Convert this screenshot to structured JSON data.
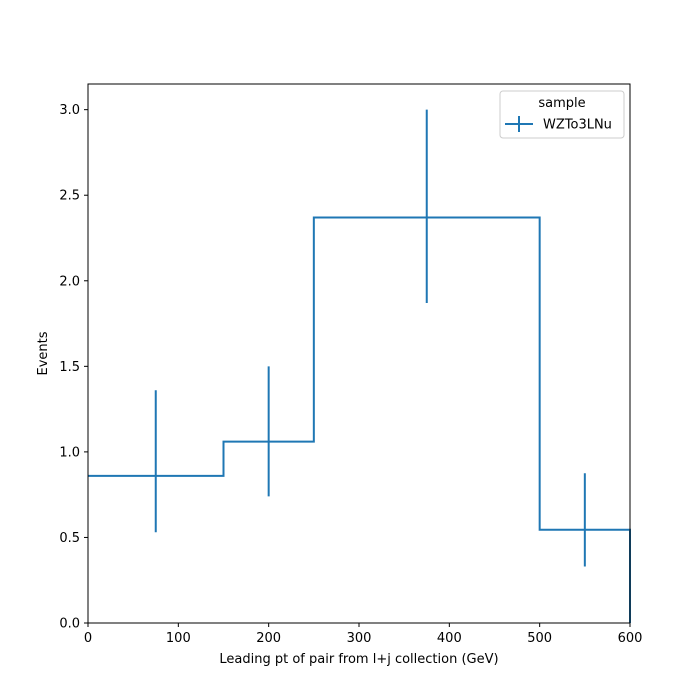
{
  "chart_data": {
    "type": "step",
    "xlabel": "Leading pt of pair from l+j collection (GeV)",
    "ylabel": "Events",
    "xlim": [
      0,
      600
    ],
    "ylim": [
      0,
      3.15
    ],
    "xticks": [
      0,
      100,
      200,
      300,
      400,
      500,
      600
    ],
    "xtick_labels": [
      "0",
      "100",
      "200",
      "300",
      "400",
      "500",
      "600"
    ],
    "yticks": [
      0.0,
      0.5,
      1.0,
      1.5,
      2.0,
      2.5,
      3.0
    ],
    "ytick_labels": [
      "0.0",
      "0.5",
      "1.0",
      "1.5",
      "2.0",
      "2.5",
      "3.0"
    ],
    "bin_edges": [
      0,
      150,
      250,
      500,
      600
    ],
    "series": [
      {
        "name": "WZTo3LNu",
        "color": "#1f77b4",
        "values": [
          0.86,
          1.06,
          2.37,
          0.545
        ],
        "bin_centers": [
          75,
          200,
          375,
          550
        ],
        "err_low": [
          0.53,
          0.74,
          1.87,
          0.33
        ],
        "err_high": [
          1.36,
          1.5,
          3.0,
          0.875
        ]
      }
    ],
    "legend": {
      "title": "sample",
      "position": "top-right"
    },
    "grid": false
  }
}
